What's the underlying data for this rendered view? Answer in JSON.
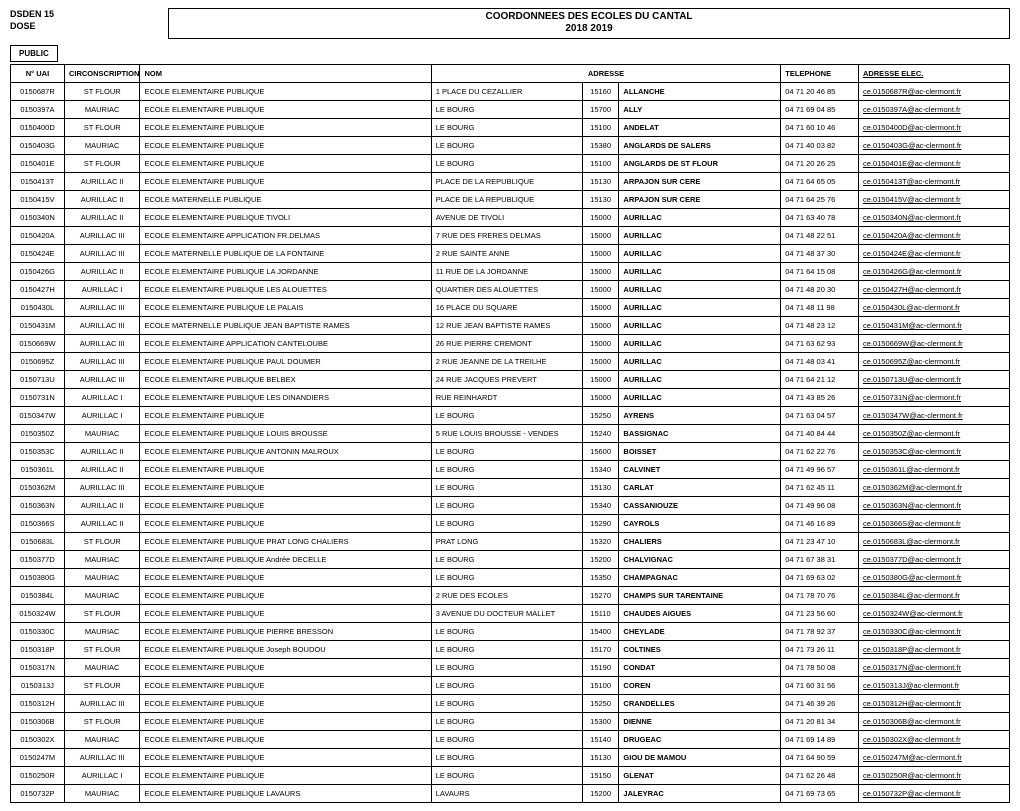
{
  "header": {
    "org_line1": "DSDEN 15",
    "org_line2": "DOSE",
    "title_line1": "COORDONNEES DES ECOLES DU CANTAL",
    "title_line2": "2018 2019",
    "section": "PUBLIC"
  },
  "columns": {
    "uai": "N° UAI",
    "circ": "CIRCONSCRIPTION",
    "nom": "NOM",
    "adresse": "ADRESSE",
    "tel": "TELEPHONE",
    "mail": "ADRESSE ELEC."
  },
  "rows": [
    {
      "uai": "0150687R",
      "circ": "ST FLOUR",
      "nom": "ECOLE ELEMENTAIRE PUBLIQUE",
      "adr": "1 PLACE DU CEZALLIER",
      "cp": "15160",
      "ville": "ALLANCHE",
      "tel": "04 71 20 46 85",
      "mail": "ce.0150687R@ac-clermont.fr"
    },
    {
      "uai": "0150397A",
      "circ": "MAURIAC",
      "nom": "ECOLE ELEMENTAIRE PUBLIQUE",
      "adr": "LE BOURG",
      "cp": "15700",
      "ville": "ALLY",
      "tel": "04 71 69 04 85",
      "mail": "ce.0150397A@ac-clermont.fr"
    },
    {
      "uai": "0150400D",
      "circ": "ST FLOUR",
      "nom": "ECOLE ELEMENTAIRE PUBLIQUE",
      "adr": "LE BOURG",
      "cp": "15100",
      "ville": "ANDELAT",
      "tel": "04 71 60 10 46",
      "mail": "ce.0150400D@ac-clermont.fr"
    },
    {
      "uai": "0150403G",
      "circ": "MAURIAC",
      "nom": "ECOLE ELEMENTAIRE PUBLIQUE",
      "adr": "LE BOURG",
      "cp": "15380",
      "ville": "ANGLARDS DE SALERS",
      "tel": "04 71 40 03 82",
      "mail": "ce.0150403G@ac-clermont.fr"
    },
    {
      "uai": "0150401E",
      "circ": "ST FLOUR",
      "nom": "ECOLE ELEMENTAIRE PUBLIQUE",
      "adr": "LE BOURG",
      "cp": "15100",
      "ville": "ANGLARDS DE ST FLOUR",
      "tel": "04 71 20 26 25",
      "mail": "ce.0150401E@ac-clermont.fr"
    },
    {
      "uai": "0150413T",
      "circ": "AURILLAC II",
      "nom": "ECOLE ELEMENTAIRE PUBLIQUE",
      "adr": "PLACE DE LA REPUBLIQUE",
      "cp": "15130",
      "ville": "ARPAJON SUR CERE",
      "tel": "04 71 64 65 05",
      "mail": "ce.0150413T@ac-clermont.fr"
    },
    {
      "uai": "0150415V",
      "circ": "AURILLAC II",
      "nom": "ECOLE MATERNELLE PUBLIQUE",
      "adr": "PLACE DE LA REPUBLIQUE",
      "cp": "15130",
      "ville": "ARPAJON SUR CERE",
      "tel": "04 71 64 25 76",
      "mail": "ce.0150415V@ac-clermont.fr"
    },
    {
      "uai": "0150340N",
      "circ": "AURILLAC II",
      "nom": "ECOLE ELEMENTAIRE PUBLIQUE        TIVOLI",
      "adr": "AVENUE DE TIVOLI",
      "cp": "15000",
      "ville": "AURILLAC",
      "tel": "04 71 63 40 78",
      "mail": "ce.0150340N@ac-clermont.fr"
    },
    {
      "uai": "0150420A",
      "circ": "AURILLAC III",
      "nom": "ECOLE ELEMENTAIRE APPLICATION     FR.DELMAS",
      "adr": "7 RUE DES FRERES DELMAS",
      "cp": "15000",
      "ville": "AURILLAC",
      "tel": "04 71 48 22 51",
      "mail": "ce.0150420A@ac-clermont.fr"
    },
    {
      "uai": "0150424E",
      "circ": "AURILLAC III",
      "nom": "ECOLE MATERNELLE PUBLIQUE        DE LA FONTAINE",
      "adr": "2 RUE SAINTE ANNE",
      "cp": "15000",
      "ville": "AURILLAC",
      "tel": "04 71 48 37 30",
      "mail": "ce.0150424E@ac-clermont.fr"
    },
    {
      "uai": "0150426G",
      "circ": "AURILLAC II",
      "nom": "ECOLE ELEMENTAIRE PUBLIQUE        LA JORDANNE",
      "adr": "11  RUE DE LA JORDANNE",
      "cp": "15000",
      "ville": "AURILLAC",
      "tel": "04 71 64 15 08",
      "mail": "ce.0150426G@ac-clermont.fr"
    },
    {
      "uai": "0150427H",
      "circ": "AURILLAC I",
      "nom": "ECOLE ELEMENTAIRE PUBLIQUE        LES ALOUETTES",
      "adr": "QUARTIER DES ALOUETTES",
      "cp": "15000",
      "ville": "AURILLAC",
      "tel": "04 71 48 20 30",
      "mail": "ce.0150427H@ac-clermont.fr"
    },
    {
      "uai": "0150430L",
      "circ": "AURILLAC III",
      "nom": "ECOLE ELEMENTAIRE PUBLIQUE        LE PALAIS",
      "adr": "16 PLACE DU SQUARE",
      "cp": "15000",
      "ville": "AURILLAC",
      "tel": "04 71 48 11 98",
      "mail": "ce.0150430L@ac-clermont.fr"
    },
    {
      "uai": "0150431M",
      "circ": "AURILLAC III",
      "nom": "ECOLE MATERNELLE PUBLIQUE        JEAN BAPTISTE RAMES",
      "adr": "12 RUE JEAN BAPTISTE RAMES",
      "cp": "15000",
      "ville": "AURILLAC",
      "tel": "04 71 48 23 12",
      "mail": "ce.0150431M@ac-clermont.fr"
    },
    {
      "uai": "0150669W",
      "circ": "AURILLAC III",
      "nom": "ECOLE ELEMENTAIRE APPLICATION    CANTELOUBE",
      "adr": "26 RUE PIERRE CREMONT",
      "cp": "15000",
      "ville": "AURILLAC",
      "tel": "04 71 63 62 93",
      "mail": "ce.0150669W@ac-clermont.fr"
    },
    {
      "uai": "0150695Z",
      "circ": "AURILLAC III",
      "nom": "ECOLE ELEMENTAIRE PUBLIQUE        PAUL DOUMER",
      "adr": "2 RUE JEANNE DE LA TREILHE",
      "cp": "15000",
      "ville": "AURILLAC",
      "tel": "04 71 48 03 41",
      "mail": "ce.0150695Z@ac-clermont.fr"
    },
    {
      "uai": "0150713U",
      "circ": "AURILLAC III",
      "nom": "ECOLE ELEMENTAIRE PUBLIQUE        BELBEX",
      "adr": "24 RUE JACQUES PREVERT",
      "cp": "15000",
      "ville": "AURILLAC",
      "tel": "04 71 64 21 12",
      "mail": "ce.0150713U@ac-clermont.fr"
    },
    {
      "uai": "0150731N",
      "circ": "AURILLAC I",
      "nom": "ECOLE ELEMENTAIRE PUBLIQUE        LES DINANDIERS",
      "adr": "RUE REINHARDT",
      "cp": "15000",
      "ville": "AURILLAC",
      "tel": "04 71 43 85 26",
      "mail": "ce.0150731N@ac-clermont.fr"
    },
    {
      "uai": "0150347W",
      "circ": "AURILLAC I",
      "nom": "ECOLE ELEMENTAIRE PUBLIQUE",
      "adr": "LE BOURG",
      "cp": "15250",
      "ville": "AYRENS",
      "tel": "04 71 63 04 57",
      "mail": "ce.0150347W@ac-clermont.fr"
    },
    {
      "uai": "0150350Z",
      "circ": "MAURIAC",
      "nom": "ECOLE ELEMENTAIRE PUBLIQUE  LOUIS BROUSSE",
      "adr": "5 RUE LOUIS BROUSSE  - VENDES",
      "cp": "15240",
      "ville": "BASSIGNAC",
      "tel": "04 71 40 84 44",
      "mail": "ce.0150350Z@ac-clermont.fr"
    },
    {
      "uai": "0150353C",
      "circ": "AURILLAC II",
      "nom": "ECOLE ELEMENTAIRE PUBLIQUE        ANTONIN  MALROUX",
      "adr": "LE BOURG",
      "cp": "15600",
      "ville": "BOISSET",
      "tel": "04 71 62 22 76",
      "mail": "ce.0150353C@ac-clermont.fr"
    },
    {
      "uai": "0150361L",
      "circ": "AURILLAC II",
      "nom": "ECOLE ELEMENTAIRE PUBLIQUE",
      "adr": "LE BOURG",
      "cp": "15340",
      "ville": "CALVINET",
      "tel": "04 71 49 96 57",
      "mail": "ce.0150361L@ac-clermont.fr"
    },
    {
      "uai": "0150362M",
      "circ": "AURILLAC III",
      "nom": "ECOLE ELEMENTAIRE PUBLIQUE",
      "adr": "LE BOURG",
      "cp": "15130",
      "ville": "CARLAT",
      "tel": "04 71 62 45 11",
      "mail": "ce.0150362M@ac-clermont.fr"
    },
    {
      "uai": "0150363N",
      "circ": "AURILLAC II",
      "nom": "ECOLE ELEMENTAIRE PUBLIQUE",
      "adr": "LE BOURG",
      "cp": "15340",
      "ville": "CASSANIOUZE",
      "tel": "04 71 49 96 08",
      "mail": "ce.0150363N@ac-clermont.fr"
    },
    {
      "uai": "0150366S",
      "circ": "AURILLAC II",
      "nom": "ECOLE ELEMENTAIRE PUBLIQUE",
      "adr": "LE BOURG",
      "cp": "15290",
      "ville": "CAYROLS",
      "tel": "04 71 46 16 89",
      "mail": "ce.0150366S@ac-clermont.fr"
    },
    {
      "uai": "0150683L",
      "circ": "ST FLOUR",
      "nom": "ECOLE ELEMENTAIRE PUBLIQUE    PRAT LONG CHALIERS",
      "adr": "PRAT LONG",
      "cp": "15320",
      "ville": "CHALIERS",
      "tel": "04 71 23 47 10",
      "mail": "ce.0150683L@ac-clermont.fr"
    },
    {
      "uai": "0150377D",
      "circ": "MAURIAC",
      "nom": "ECOLE ELEMENTAIRE PUBLIQUE   Andrée DECELLE",
      "adr": "LE BOURG",
      "cp": "15200",
      "ville": "CHALVIGNAC",
      "tel": "04 71 67 38 31",
      "mail": "ce.0150377D@ac-clermont.fr"
    },
    {
      "uai": "0150380G",
      "circ": "MAURIAC",
      "nom": "ECOLE ELEMENTAIRE PUBLIQUE",
      "adr": "LE BOURG",
      "cp": "15350",
      "ville": "CHAMPAGNAC",
      "tel": "04 71 69 63 02",
      "mail": "ce.0150380G@ac-clermont.fr"
    },
    {
      "uai": "0150384L",
      "circ": "MAURIAC",
      "nom": "ECOLE ELEMENTAIRE PUBLIQUE",
      "adr": "2 RUE DES ECOLES",
      "cp": "15270",
      "ville": "CHAMPS SUR TARENTAINE",
      "tel": "04 71 78 70 76",
      "mail": "ce.0150384L@ac-clermont.fr"
    },
    {
      "uai": "0150324W",
      "circ": "ST FLOUR",
      "nom": "ECOLE ELEMENTAIRE PUBLIQUE",
      "adr": "3 AVENUE DU DOCTEUR MALLET",
      "cp": "15110",
      "ville": "CHAUDES AIGUES",
      "tel": "04 71 23 56 60",
      "mail": "ce.0150324W@ac-clermont.fr"
    },
    {
      "uai": "0150330C",
      "circ": "MAURIAC",
      "nom": "ECOLE ELEMENTAIRE PUBLIQUE  PIERRE BRESSON",
      "adr": "LE BOURG",
      "cp": "15400",
      "ville": "CHEYLADE",
      "tel": "04 71 78 92 37",
      "mail": "ce.0150330C@ac-clermont.fr"
    },
    {
      "uai": "0150318P",
      "circ": "ST FLOUR",
      "nom": "ECOLE ELEMENTAIRE PUBLIQUE  Joseph  BOUDOU",
      "adr": "LE BOURG",
      "cp": "15170",
      "ville": "COLTINES",
      "tel": "04 71 73 26 11",
      "mail": "ce.0150318P@ac-clermont.fr"
    },
    {
      "uai": "0150317N",
      "circ": "MAURIAC",
      "nom": "ECOLE ELEMENTAIRE PUBLIQUE",
      "adr": "LE BOURG",
      "cp": "15190",
      "ville": "CONDAT",
      "tel": "04 71 78 50 08",
      "mail": "ce.0150317N@ac-clermont.fr"
    },
    {
      "uai": "0150313J",
      "circ": "ST FLOUR",
      "nom": "ECOLE ELEMENTAIRE PUBLIQUE",
      "adr": "LE BOURG",
      "cp": "15100",
      "ville": "COREN",
      "tel": "04 71 60 31 56",
      "mail": "ce.0150313J@ac-clermont.fr"
    },
    {
      "uai": "0150312H",
      "circ": "AURILLAC III",
      "nom": "ECOLE ELEMENTAIRE PUBLIQUE",
      "adr": "LE BOURG",
      "cp": "15250",
      "ville": "CRANDELLES",
      "tel": "04 71 46 39 26",
      "mail": "ce.0150312H@ac-clermont.fr"
    },
    {
      "uai": "0150306B",
      "circ": "ST FLOUR",
      "nom": "ECOLE ELEMENTAIRE PUBLIQUE",
      "adr": "LE BOURG",
      "cp": "15300",
      "ville": "DIENNE",
      "tel": "04 71 20 81 34",
      "mail": "ce.0150306B@ac-clermont.fr"
    },
    {
      "uai": "0150302X",
      "circ": "MAURIAC",
      "nom": "ECOLE ELEMENTAIRE PUBLIQUE",
      "adr": "LE BOURG",
      "cp": "15140",
      "ville": "DRUGEAC",
      "tel": "04 71 69 14 89",
      "mail": "ce.0150302X@ac-clermont.fr"
    },
    {
      "uai": "0150247M",
      "circ": "AURILLAC III",
      "nom": "ECOLE ELEMENTAIRE PUBLIQUE",
      "adr": "LE BOURG",
      "cp": "15130",
      "ville": "GIOU DE MAMOU",
      "tel": "04 71 64 90 59",
      "mail": "ce.0150247M@ac-clermont.fr"
    },
    {
      "uai": "0150250R",
      "circ": "AURILLAC I",
      "nom": "ECOLE ELEMENTAIRE PUBLIQUE",
      "adr": "LE BOURG",
      "cp": "15150",
      "ville": "GLENAT",
      "tel": "04 71 62 26 48",
      "mail": "ce.0150250R@ac-clermont.fr"
    },
    {
      "uai": "0150732P",
      "circ": "MAURIAC",
      "nom": "ECOLE ELEMENTAIRE PUBLIQUE      LAVAURS",
      "adr": "LAVAURS",
      "cp": "15200",
      "ville": "JALEYRAC",
      "tel": "04 71 69 73 65",
      "mail": "ce.0150732P@ac-clermont.fr"
    }
  ]
}
